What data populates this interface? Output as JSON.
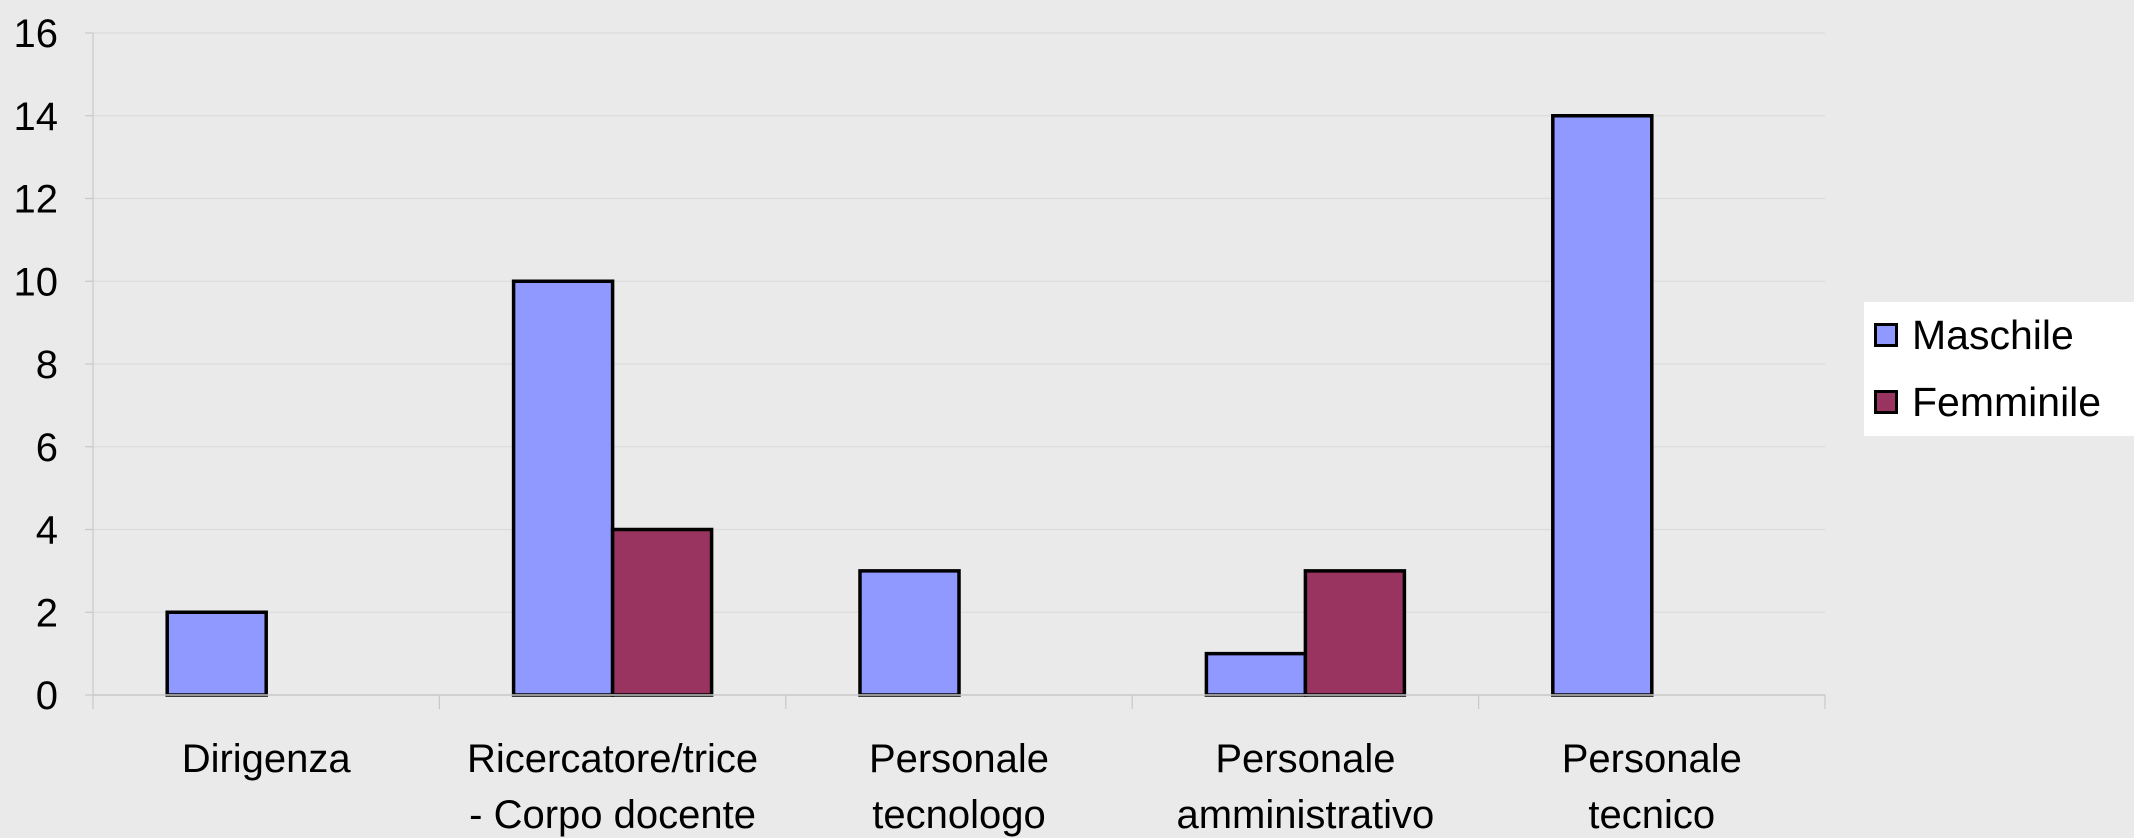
{
  "chart_data": {
    "type": "bar",
    "categories": [
      [
        "Dirigenza"
      ],
      [
        "Ricercatore/trice",
        "- Corpo docente"
      ],
      [
        "Personale",
        "tecnologo"
      ],
      [
        "Personale",
        "amministrativo"
      ],
      [
        "Personale",
        "tecnico"
      ]
    ],
    "series": [
      {
        "name": "Maschile",
        "values": [
          2,
          10,
          3,
          1,
          14
        ],
        "color": "#9099ff"
      },
      {
        "name": "Femminile",
        "values": [
          0,
          4,
          0,
          3,
          0
        ],
        "color": "#993360"
      }
    ],
    "yticks": [
      "0",
      "2",
      "4",
      "6",
      "8",
      "10",
      "12",
      "14",
      "16"
    ],
    "ylim": [
      0,
      16
    ],
    "grid": true,
    "legend_position": "right",
    "title": "",
    "xlabel": "",
    "ylabel": ""
  }
}
